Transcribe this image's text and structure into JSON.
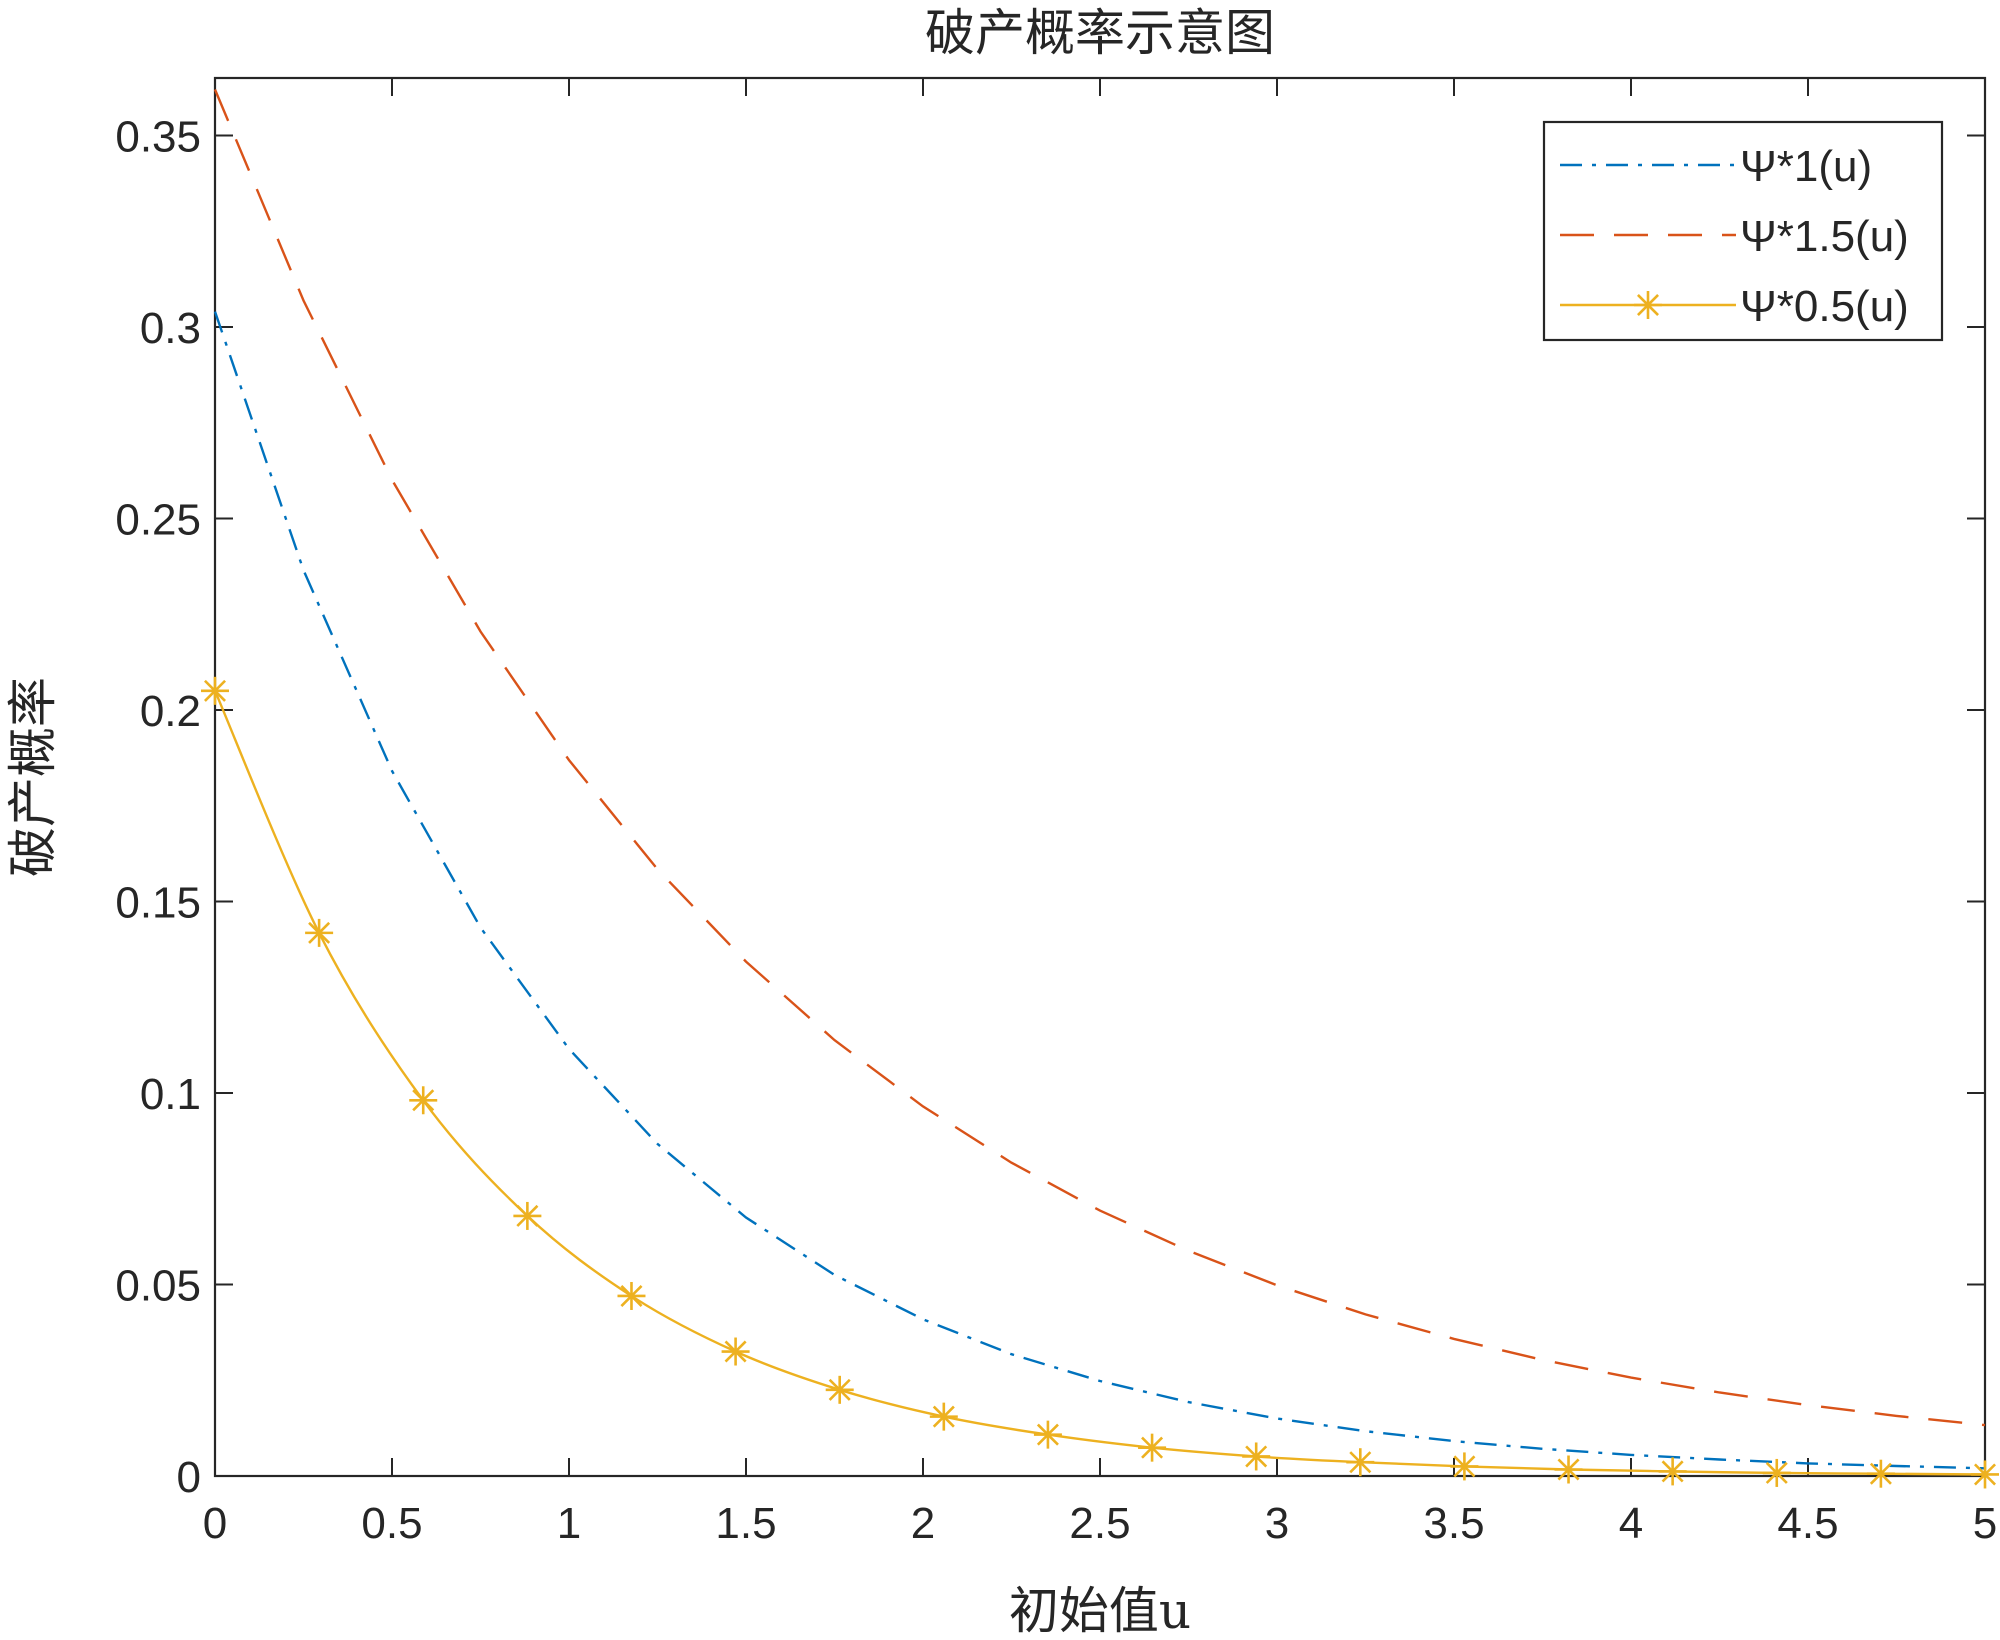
{
  "chart_data": {
    "type": "line",
    "title": "破产概率示意图",
    "xlabel": "初始值u",
    "ylabel": "破产概率",
    "xlim": [
      0,
      5
    ],
    "ylim": [
      0,
      0.365
    ],
    "grid": false,
    "legend_position": "top-right",
    "x_ticks": [
      0,
      0.5,
      1,
      1.5,
      2,
      2.5,
      3,
      3.5,
      4,
      4.5,
      5
    ],
    "x_tick_labels": [
      "0",
      "0.5",
      "1",
      "1.5",
      "2",
      "2.5",
      "3",
      "3.5",
      "4",
      "4.5",
      "5"
    ],
    "y_ticks": [
      0,
      0.05,
      0.1,
      0.15,
      0.2,
      0.25,
      0.3,
      0.35
    ],
    "y_tick_labels": [
      "0",
      "0.05",
      "0.1",
      "0.15",
      "0.2",
      "0.25",
      "0.3",
      "0.35"
    ],
    "series": [
      {
        "name": "Ψ*1(u)",
        "color": "#0072BD",
        "line_style": "dash-dot",
        "marker": "none",
        "x": [
          0,
          0.25,
          0.5,
          0.75,
          1,
          1.25,
          1.5,
          1.75,
          2,
          2.25,
          2.5,
          2.75,
          3,
          3.25,
          3.5,
          3.75,
          4,
          4.25,
          4.5,
          4.75,
          5
        ],
        "y": [
          0.304,
          0.2365,
          0.1841,
          0.1432,
          0.1115,
          0.0867,
          0.0675,
          0.0525,
          0.0409,
          0.0318,
          0.0248,
          0.0193,
          0.015,
          0.0117,
          0.0091,
          0.0071,
          0.0055,
          0.0043,
          0.0033,
          0.0026,
          0.002
        ]
      },
      {
        "name": "Ψ*1.5(u)",
        "color": "#D95319",
        "line_style": "dashed",
        "marker": "none",
        "x": [
          0,
          0.25,
          0.5,
          0.75,
          1,
          1.25,
          1.5,
          1.75,
          2,
          2.25,
          2.5,
          2.75,
          3,
          3.25,
          3.5,
          3.75,
          4,
          4.25,
          4.5,
          4.75,
          5
        ],
        "y": [
          0.362,
          0.3069,
          0.2601,
          0.2205,
          0.1869,
          0.1584,
          0.1343,
          0.1138,
          0.0965,
          0.0818,
          0.0693,
          0.0588,
          0.0498,
          0.0422,
          0.0358,
          0.0303,
          0.0257,
          0.0218,
          0.0185,
          0.0157,
          0.0133
        ]
      },
      {
        "name": "Ψ*0.5(u)",
        "color": "#EDB120",
        "line_style": "solid",
        "marker": "asterisk",
        "x": [
          0,
          0.2941,
          0.5882,
          0.8824,
          1.1765,
          1.4706,
          1.7647,
          2.0588,
          2.3529,
          2.6471,
          2.9412,
          3.2353,
          3.5294,
          3.8235,
          4.1176,
          4.4118,
          4.7059,
          5
        ],
        "y": [
          0.205,
          0.1418,
          0.0981,
          0.0679,
          0.047,
          0.0325,
          0.0225,
          0.0155,
          0.0108,
          0.0074,
          0.0051,
          0.0036,
          0.0025,
          0.0017,
          0.0012,
          0.0008,
          0.0006,
          0.0004
        ]
      }
    ]
  }
}
